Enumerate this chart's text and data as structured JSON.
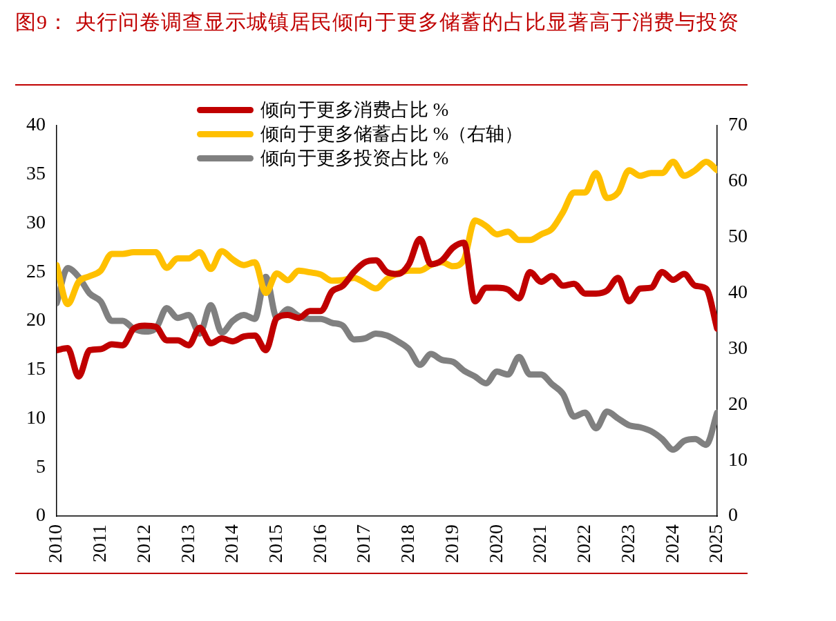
{
  "chart_data": {
    "type": "line",
    "title": "图9：  央行问卷调查显示城镇居民倾向于更多储蓄的占比显著高于消费与投资",
    "x": [
      2010,
      2010.25,
      2010.5,
      2010.75,
      2011,
      2011.25,
      2011.5,
      2011.75,
      2012,
      2012.25,
      2012.5,
      2012.75,
      2013,
      2013.25,
      2013.5,
      2013.75,
      2014,
      2014.25,
      2014.5,
      2014.75,
      2015,
      2015.25,
      2015.5,
      2015.75,
      2016,
      2016.25,
      2016.5,
      2016.75,
      2017,
      2017.25,
      2017.5,
      2017.75,
      2018,
      2018.25,
      2018.5,
      2018.75,
      2019,
      2019.25,
      2019.5,
      2019.75,
      2020,
      2020.25,
      2020.5,
      2020.75,
      2021,
      2021.25,
      2021.5,
      2021.75,
      2022,
      2022.25,
      2022.5,
      2022.75,
      2023,
      2023.25,
      2023.5,
      2023.75,
      2024,
      2024.25,
      2024.5,
      2024.75,
      2025
    ],
    "series": [
      {
        "name": "倾向于更多消费占比 %",
        "color": "#c00000",
        "values": [
          17,
          17.2,
          14.3,
          17,
          17.1,
          17.6,
          17.5,
          19.2,
          19.5,
          19.4,
          18,
          18,
          17.5,
          19.3,
          17.7,
          18.2,
          17.9,
          18.4,
          18.5,
          17,
          20.3,
          20.6,
          20.3,
          21,
          21,
          23,
          23.6,
          25,
          26,
          26.2,
          25,
          24.8,
          25.8,
          28.4,
          25.8,
          26.2,
          27.5,
          28,
          22,
          23.4,
          23.4,
          23.2,
          22.3,
          25,
          24,
          24.6,
          23.6,
          23.8,
          22.8,
          22.8,
          23.1,
          24.4,
          22,
          23.3,
          23.4,
          25,
          24.2,
          24.8,
          23.6,
          23.3,
          19.2
        ]
      },
      {
        "name": "倾向于更多储蓄占比 %（右轴）",
        "color": "#ffc000",
        "axis": "y2",
        "values": [
          45,
          38,
          42,
          43,
          44,
          47,
          47,
          47.3,
          47.3,
          47.3,
          44.5,
          46.2,
          46.2,
          47.3,
          44.3,
          47.5,
          46,
          45,
          45.5,
          40,
          43.5,
          42.3,
          44,
          43.7,
          43.3,
          42.2,
          42.3,
          42.7,
          41.8,
          40.8,
          42.5,
          43.5,
          44,
          44,
          45,
          45.5,
          44.8,
          46,
          53,
          52,
          50.5,
          51,
          49.5,
          49.5,
          50.5,
          51.5,
          54.5,
          58,
          58,
          61.5,
          57,
          58,
          62,
          61,
          61.5,
          61.5,
          63.5,
          61,
          62,
          63.5,
          62
        ]
      },
      {
        "name": "倾向于更多投资占比 %",
        "color": "#808080",
        "values": [
          21.8,
          25.4,
          24.5,
          22.8,
          22,
          20,
          20,
          19.2,
          18.9,
          19.2,
          21.3,
          20.3,
          20.6,
          18.7,
          21.6,
          18.8,
          20,
          20.6,
          20.2,
          24.5,
          20.3,
          21.2,
          20.5,
          20.2,
          20.2,
          19.8,
          19.5,
          18.1,
          18.2,
          18.7,
          18.5,
          17.9,
          17.1,
          15.5,
          16.6,
          16,
          15.8,
          14.9,
          14.3,
          13.6,
          14.8,
          14.5,
          16.3,
          14.5,
          14.5,
          13.5,
          12.5,
          10.2,
          10.6,
          9,
          10.7,
          10,
          9.3,
          9.1,
          8.7,
          7.9,
          6.8,
          7.7,
          7.9,
          7.3,
          10.6
        ]
      }
    ],
    "xlim": [
      2010,
      2025
    ],
    "xticks": [
      2010,
      2011,
      2012,
      2013,
      2014,
      2015,
      2016,
      2017,
      2018,
      2019,
      2020,
      2021,
      2022,
      2023,
      2024,
      2025
    ],
    "ylim": [
      0,
      40
    ],
    "yticks": [
      0,
      5,
      10,
      15,
      20,
      25,
      30,
      35,
      40
    ],
    "y2lim": [
      0,
      70
    ],
    "y2ticks": [
      0,
      10,
      20,
      30,
      40,
      50,
      60,
      70
    ],
    "grid": false,
    "legend": "top",
    "marker": "none",
    "line_style": "solid"
  }
}
